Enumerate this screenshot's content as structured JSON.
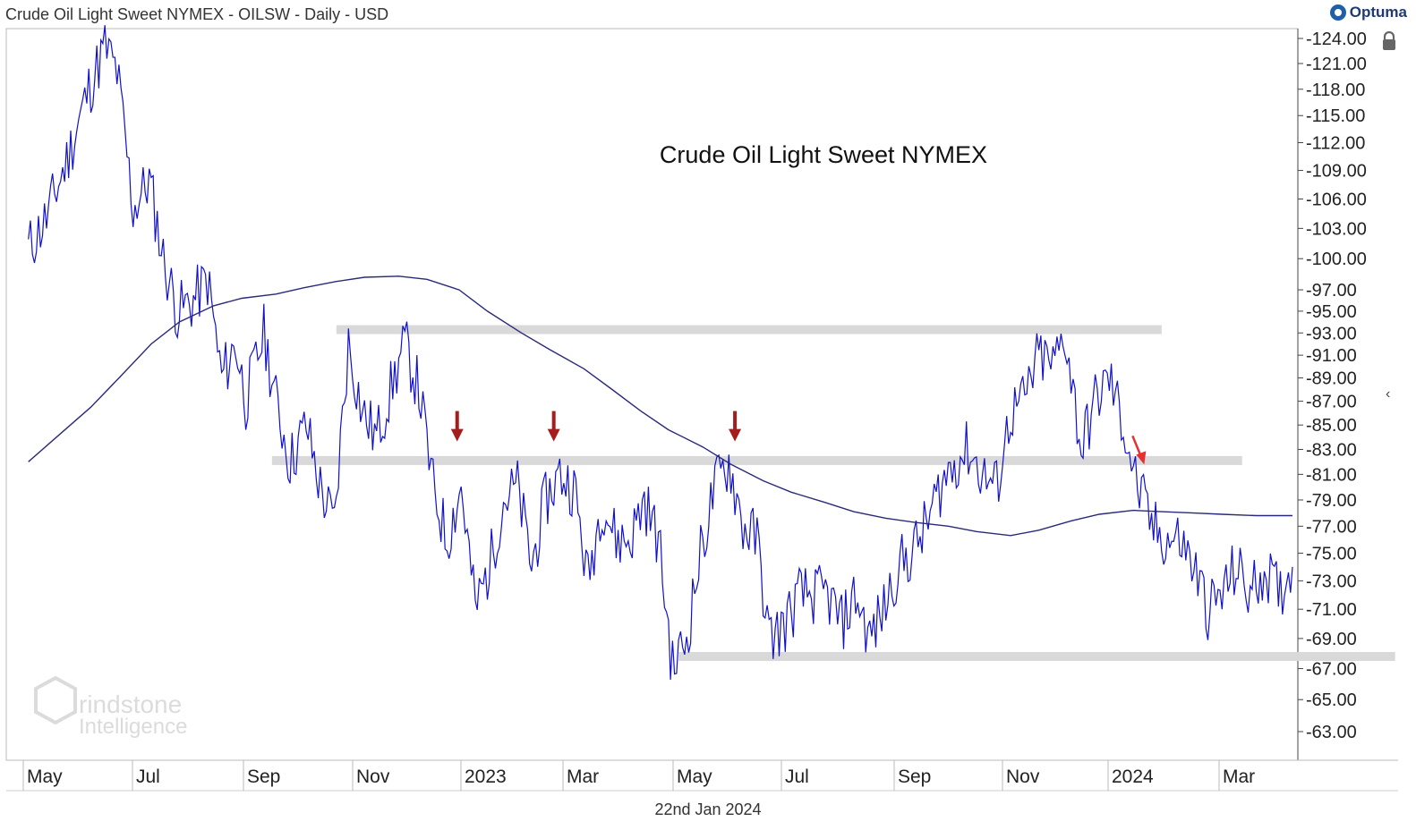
{
  "header": {
    "title": "Crude Oil Light Sweet NYMEX - OILSW - Daily - USD"
  },
  "brand": {
    "name": "Optuma"
  },
  "footer": {
    "date": "22nd Jan 2024"
  },
  "watermark": {
    "line1": "Grindstone",
    "line2": "Intelligence"
  },
  "chart_data": {
    "type": "line",
    "title": "Crude Oil Light Sweet NYMEX",
    "xlabel": "",
    "ylabel": "",
    "ylim": [
      61,
      125
    ],
    "y_scale": "log",
    "y_ticks": [
      "124.00",
      "121.00",
      "118.00",
      "115.00",
      "112.00",
      "109.00",
      "106.00",
      "103.00",
      "100.00",
      "97.00",
      "95.00",
      "93.00",
      "91.00",
      "89.00",
      "87.00",
      "85.00",
      "83.00",
      "81.00",
      "79.00",
      "77.00",
      "75.00",
      "73.00",
      "71.00",
      "69.00",
      "67.00",
      "65.00",
      "63.00"
    ],
    "x_ticks": [
      "May",
      "Jul",
      "Sep",
      "Nov",
      "2023",
      "Mar",
      "May",
      "Jul",
      "Sep",
      "Nov",
      "2024",
      "Mar"
    ],
    "series": [
      {
        "values": [
          [
            "2022-05-01",
            101
          ],
          [
            "2022-05-10",
            104
          ],
          [
            "2022-05-20",
            110
          ],
          [
            "2022-05-31",
            118
          ],
          [
            "2022-06-08",
            123
          ],
          [
            "2022-06-14",
            120
          ],
          [
            "2022-06-22",
            105
          ],
          [
            "2022-06-30",
            108
          ],
          [
            "2022-07-07",
            100
          ],
          [
            "2022-07-14",
            95
          ],
          [
            "2022-07-22",
            96
          ],
          [
            "2022-07-29",
            98
          ],
          [
            "2022-08-05",
            89
          ],
          [
            "2022-08-12",
            92
          ],
          [
            "2022-08-17",
            87
          ],
          [
            "2022-08-26",
            93
          ],
          [
            "2022-09-01",
            87
          ],
          [
            "2022-09-08",
            82
          ],
          [
            "2022-09-16",
            85
          ],
          [
            "2022-09-23",
            80
          ],
          [
            "2022-09-30",
            77
          ],
          [
            "2022-10-07",
            92
          ],
          [
            "2022-10-14",
            86
          ],
          [
            "2022-10-21",
            84
          ],
          [
            "2022-10-28",
            88
          ],
          [
            "2022-11-04",
            92
          ],
          [
            "2022-11-11",
            88
          ],
          [
            "2022-11-18",
            80
          ],
          [
            "2022-11-25",
            76
          ],
          [
            "2022-12-02",
            80
          ],
          [
            "2022-12-09",
            71
          ],
          [
            "2022-12-16",
            74
          ],
          [
            "2022-12-23",
            79
          ],
          [
            "2022-12-30",
            80
          ],
          [
            "2023-01-06",
            74
          ],
          [
            "2023-01-13",
            79
          ],
          [
            "2023-01-20",
            81
          ],
          [
            "2023-01-27",
            80
          ],
          [
            "2023-02-03",
            73
          ],
          [
            "2023-02-10",
            79
          ],
          [
            "2023-02-17",
            76
          ],
          [
            "2023-02-24",
            76
          ],
          [
            "2023-03-03",
            79
          ],
          [
            "2023-03-10",
            76
          ],
          [
            "2023-03-17",
            67
          ],
          [
            "2023-03-24",
            69
          ],
          [
            "2023-03-31",
            75
          ],
          [
            "2023-04-07",
            80
          ],
          [
            "2023-04-14",
            82
          ],
          [
            "2023-04-21",
            77
          ],
          [
            "2023-04-28",
            76
          ],
          [
            "2023-05-04",
            69
          ],
          [
            "2023-05-12",
            70
          ],
          [
            "2023-05-19",
            72
          ],
          [
            "2023-05-26",
            72
          ],
          [
            "2023-06-02",
            72
          ],
          [
            "2023-06-09",
            70
          ],
          [
            "2023-06-16",
            72
          ],
          [
            "2023-06-23",
            69
          ],
          [
            "2023-06-30",
            71
          ],
          [
            "2023-07-07",
            74
          ],
          [
            "2023-07-14",
            75
          ],
          [
            "2023-07-21",
            77
          ],
          [
            "2023-07-28",
            80
          ],
          [
            "2023-08-04",
            82
          ],
          [
            "2023-08-11",
            83
          ],
          [
            "2023-08-18",
            81
          ],
          [
            "2023-08-25",
            80
          ],
          [
            "2023-09-01",
            86
          ],
          [
            "2023-09-08",
            87
          ],
          [
            "2023-09-15",
            91
          ],
          [
            "2023-09-22",
            90
          ],
          [
            "2023-09-28",
            93
          ],
          [
            "2023-10-06",
            83
          ],
          [
            "2023-10-13",
            87
          ],
          [
            "2023-10-20",
            89
          ],
          [
            "2023-10-27",
            85
          ],
          [
            "2023-11-03",
            80
          ],
          [
            "2023-11-10",
            77
          ],
          [
            "2023-11-17",
            76
          ],
          [
            "2023-11-24",
            76
          ],
          [
            "2023-12-01",
            74
          ],
          [
            "2023-12-08",
            71
          ],
          [
            "2023-12-15",
            72
          ],
          [
            "2023-12-22",
            74
          ],
          [
            "2023-12-29",
            72
          ],
          [
            "2024-01-05",
            74
          ],
          [
            "2024-01-12",
            72
          ],
          [
            "2024-01-19",
            74
          ]
        ]
      },
      {
        "values": [
          [
            "2022-05-01",
            82
          ],
          [
            "2022-05-15",
            84
          ],
          [
            "2022-06-01",
            86.5
          ],
          [
            "2022-06-15",
            89
          ],
          [
            "2022-07-01",
            92
          ],
          [
            "2022-07-15",
            94
          ],
          [
            "2022-08-01",
            95.5
          ],
          [
            "2022-08-15",
            96.2
          ],
          [
            "2022-09-01",
            96.6
          ],
          [
            "2022-09-15",
            97.2
          ],
          [
            "2022-10-01",
            97.8
          ],
          [
            "2022-10-15",
            98.2
          ],
          [
            "2022-11-01",
            98.3
          ],
          [
            "2022-11-15",
            98
          ],
          [
            "2022-12-01",
            97
          ],
          [
            "2022-12-15",
            95
          ],
          [
            "2023-01-01",
            93
          ],
          [
            "2023-01-15",
            91.5
          ],
          [
            "2023-02-01",
            89.8
          ],
          [
            "2023-02-15",
            88
          ],
          [
            "2023-03-01",
            86.2
          ],
          [
            "2023-03-15",
            84.6
          ],
          [
            "2023-04-01",
            83.2
          ],
          [
            "2023-04-15",
            81.8
          ],
          [
            "2023-05-01",
            80.5
          ],
          [
            "2023-05-15",
            79.6
          ],
          [
            "2023-06-01",
            78.8
          ],
          [
            "2023-06-15",
            78.1
          ],
          [
            "2023-07-01",
            77.6
          ],
          [
            "2023-07-15",
            77.3
          ],
          [
            "2023-08-01",
            77
          ],
          [
            "2023-08-15",
            76.6
          ],
          [
            "2023-09-01",
            76.3
          ],
          [
            "2023-09-15",
            76.7
          ],
          [
            "2023-10-01",
            77.4
          ],
          [
            "2023-10-15",
            77.9
          ],
          [
            "2023-11-01",
            78.2
          ],
          [
            "2023-11-15",
            78.1
          ],
          [
            "2023-12-01",
            78
          ],
          [
            "2023-12-15",
            77.9
          ],
          [
            "2024-01-01",
            77.8
          ],
          [
            "2024-01-19",
            77.8
          ]
        ]
      }
    ],
    "support_resistance": [
      {
        "from": "2022-10-01",
        "to": "2023-11-15",
        "value": 93.3
      },
      {
        "from": "2022-08-30",
        "to": "2023-12-25",
        "value": 82.1
      },
      {
        "from": "2023-03-20",
        "to": "2024-03-10",
        "value": 67.8
      }
    ],
    "markers": [
      {
        "date": "2022-11-30",
        "value": 83.5,
        "color": "#a31f1f"
      },
      {
        "date": "2023-01-17",
        "value": 83.5,
        "color": "#a31f1f"
      },
      {
        "date": "2023-04-17",
        "value": 83.5,
        "color": "#a31f1f"
      },
      {
        "date": "2023-11-05",
        "value": 81.5,
        "color": "#e53030"
      }
    ],
    "grid": false,
    "colors": {
      "price": "#1111cc",
      "average": "#2a2a7a",
      "band": "#d9d9d9",
      "axis": "#444444"
    }
  }
}
